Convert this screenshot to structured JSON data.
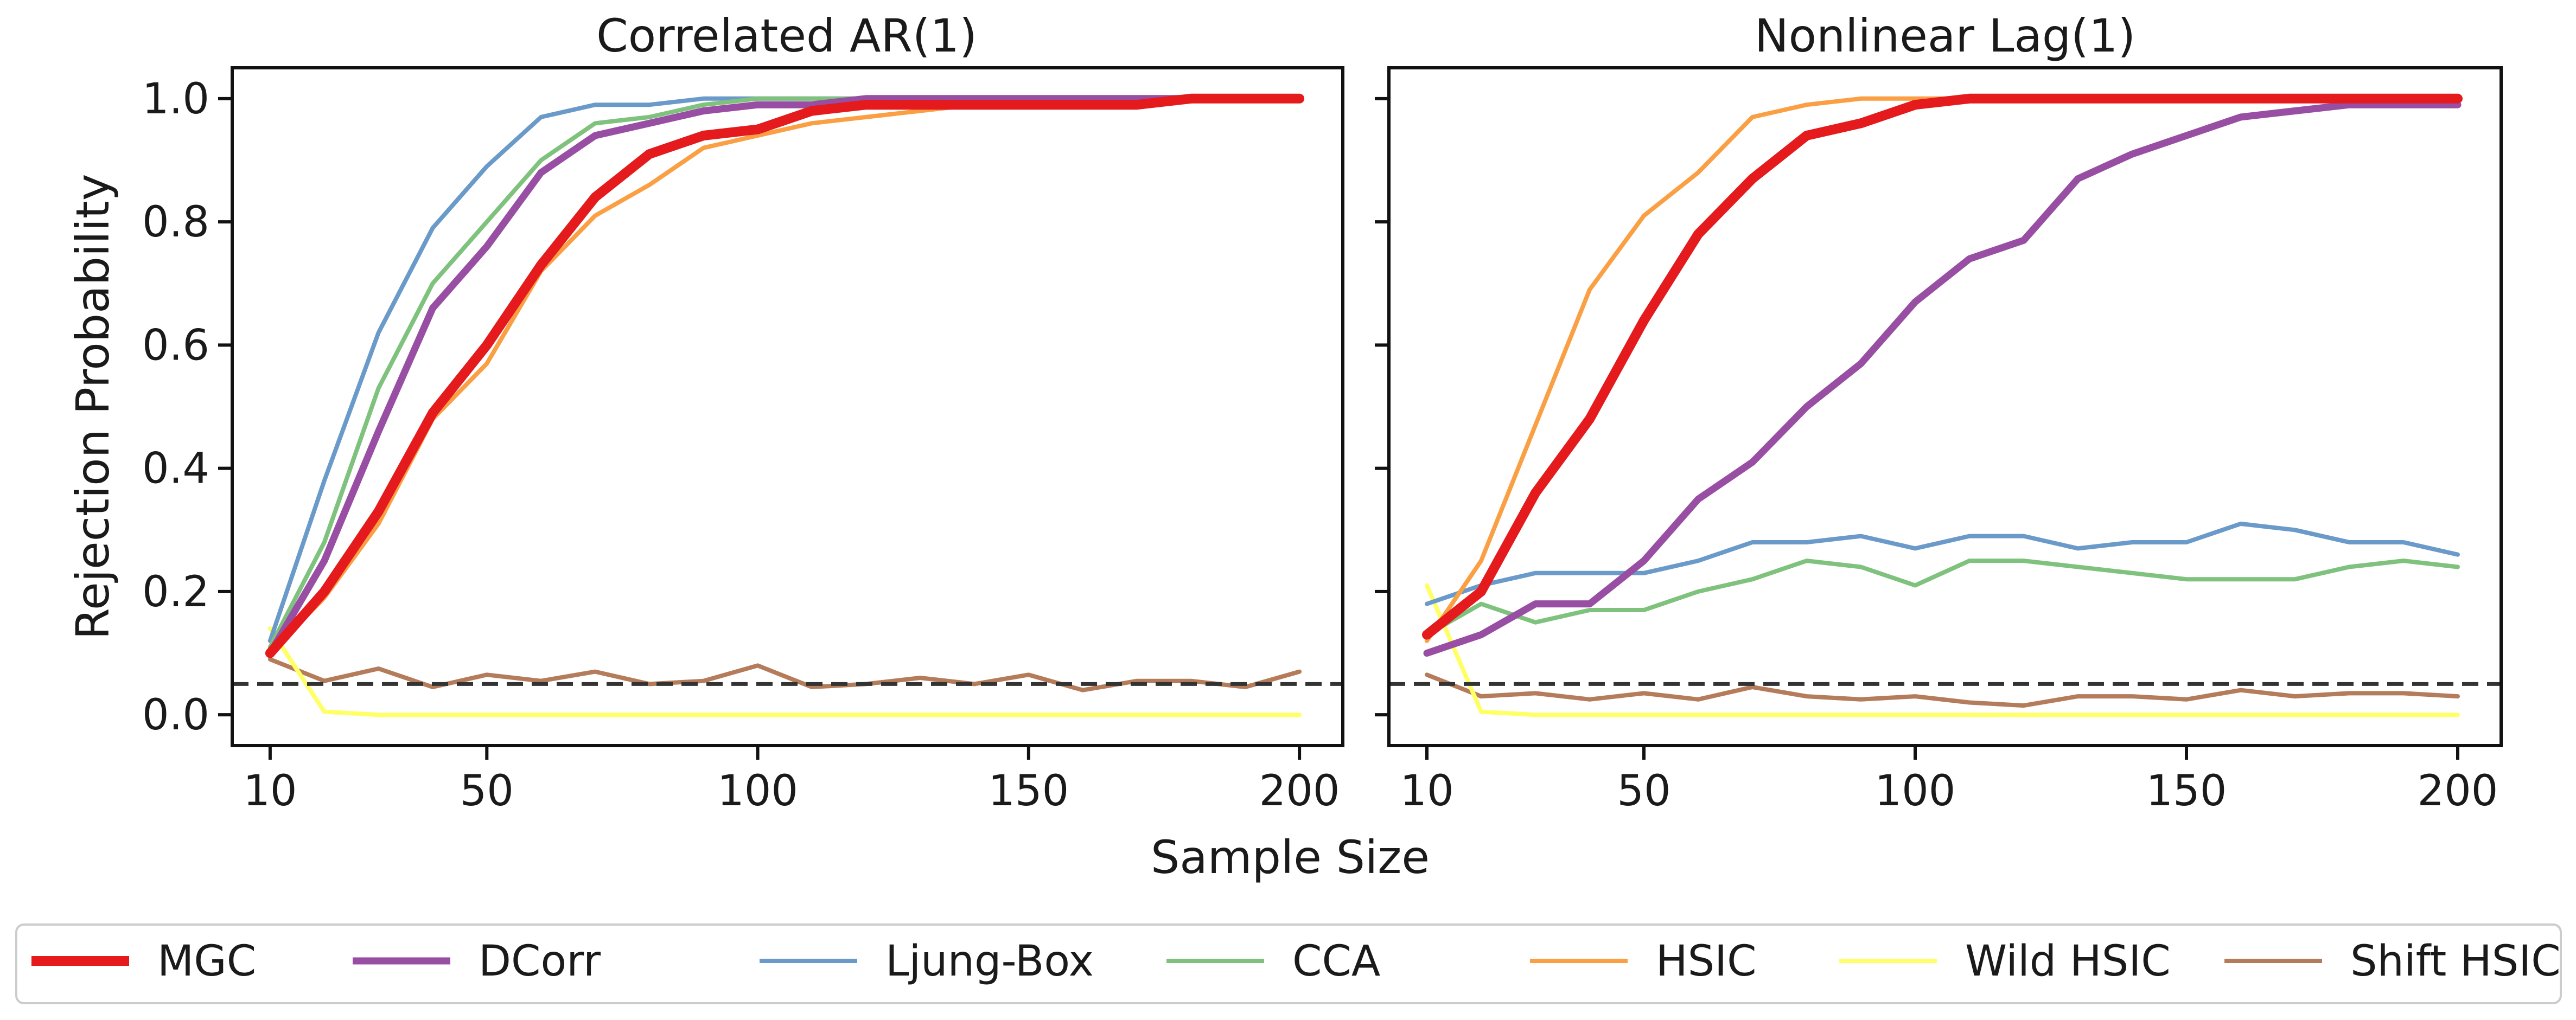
{
  "figure": {
    "xlabel": "Sample Size",
    "ylabel": "Rejection Probability"
  },
  "legend": {
    "placement": "bottom",
    "entries": [
      "MGC",
      "DCorr",
      "Ljung-Box",
      "CCA",
      "HSIC",
      "Wild HSIC",
      "Shift HSIC"
    ]
  },
  "colors": {
    "MGC": "#e41a1c",
    "DCorr": "#984ea3",
    "Ljung-Box": "#6a9ac9",
    "CCA": "#7fc27d",
    "HSIC": "#fa9f44",
    "Wild HSIC": "#ffff66",
    "Shift HSIC": "#b47c5a",
    "reference": "#333333"
  },
  "chart_data": [
    {
      "type": "line",
      "title": "Correlated AR(1)",
      "xlabel": "",
      "ylabel": "Rejection Probability",
      "xlim": [
        3,
        208
      ],
      "ylim": [
        -0.05,
        1.05
      ],
      "xticks": [
        10,
        50,
        100,
        150,
        200
      ],
      "yticks": [
        0.0,
        0.2,
        0.4,
        0.6,
        0.8,
        1.0
      ],
      "ytick_labels": [
        "0.0",
        "0.2",
        "0.4",
        "0.6",
        "0.8",
        "1.0"
      ],
      "reference_line": 0.05,
      "x": [
        10,
        20,
        30,
        40,
        50,
        60,
        70,
        80,
        90,
        100,
        110,
        120,
        130,
        140,
        150,
        160,
        170,
        180,
        190,
        200
      ],
      "series": [
        {
          "name": "MGC",
          "values": [
            0.1,
            0.2,
            0.33,
            0.49,
            0.6,
            0.73,
            0.84,
            0.91,
            0.94,
            0.95,
            0.98,
            0.99,
            0.99,
            0.99,
            0.99,
            0.99,
            0.99,
            1.0,
            1.0,
            1.0
          ]
        },
        {
          "name": "DCorr",
          "values": [
            0.1,
            0.25,
            0.46,
            0.66,
            0.76,
            0.88,
            0.94,
            0.96,
            0.98,
            0.99,
            0.99,
            1.0,
            1.0,
            1.0,
            1.0,
            1.0,
            1.0,
            1.0,
            1.0,
            1.0
          ]
        },
        {
          "name": "Ljung-Box",
          "values": [
            0.12,
            0.38,
            0.62,
            0.79,
            0.89,
            0.97,
            0.99,
            0.99,
            1.0,
            1.0,
            1.0,
            1.0,
            1.0,
            1.0,
            1.0,
            1.0,
            1.0,
            1.0,
            1.0,
            1.0
          ]
        },
        {
          "name": "CCA",
          "values": [
            0.11,
            0.28,
            0.53,
            0.7,
            0.8,
            0.9,
            0.96,
            0.97,
            0.99,
            1.0,
            1.0,
            1.0,
            1.0,
            1.0,
            1.0,
            1.0,
            1.0,
            1.0,
            1.0,
            1.0
          ]
        },
        {
          "name": "HSIC",
          "values": [
            0.1,
            0.19,
            0.31,
            0.48,
            0.57,
            0.72,
            0.81,
            0.86,
            0.92,
            0.94,
            0.96,
            0.97,
            0.98,
            0.99,
            1.0,
            1.0,
            1.0,
            1.0,
            1.0,
            1.0
          ]
        },
        {
          "name": "Wild HSIC",
          "values": [
            0.14,
            0.005,
            0.0,
            0.0,
            0.0,
            0.0,
            0.0,
            0.0,
            0.0,
            0.0,
            0.0,
            0.0,
            0.0,
            0.0,
            0.0,
            0.0,
            0.0,
            0.0,
            0.0,
            0.0
          ]
        },
        {
          "name": "Shift HSIC",
          "values": [
            0.09,
            0.055,
            0.075,
            0.045,
            0.065,
            0.055,
            0.07,
            0.05,
            0.055,
            0.08,
            0.045,
            0.05,
            0.06,
            0.05,
            0.065,
            0.04,
            0.055,
            0.055,
            0.045,
            0.07
          ]
        }
      ]
    },
    {
      "type": "line",
      "title": "Nonlinear Lag(1)",
      "xlabel": "",
      "ylabel": "",
      "xlim": [
        3,
        208
      ],
      "ylim": [
        -0.05,
        1.05
      ],
      "xticks": [
        10,
        50,
        100,
        150,
        200
      ],
      "yticks": [
        0.0,
        0.2,
        0.4,
        0.6,
        0.8,
        1.0
      ],
      "ytick_labels": [],
      "reference_line": 0.05,
      "x": [
        10,
        20,
        30,
        40,
        50,
        60,
        70,
        80,
        90,
        100,
        110,
        120,
        130,
        140,
        150,
        160,
        170,
        180,
        190,
        200
      ],
      "series": [
        {
          "name": "MGC",
          "values": [
            0.13,
            0.2,
            0.36,
            0.48,
            0.64,
            0.78,
            0.87,
            0.94,
            0.96,
            0.99,
            1.0,
            1.0,
            1.0,
            1.0,
            1.0,
            1.0,
            1.0,
            1.0,
            1.0,
            1.0
          ]
        },
        {
          "name": "DCorr",
          "values": [
            0.1,
            0.13,
            0.18,
            0.18,
            0.25,
            0.35,
            0.41,
            0.5,
            0.57,
            0.67,
            0.74,
            0.77,
            0.87,
            0.91,
            0.94,
            0.97,
            0.98,
            0.99,
            0.99,
            0.99
          ]
        },
        {
          "name": "Ljung-Box",
          "values": [
            0.18,
            0.21,
            0.23,
            0.23,
            0.23,
            0.25,
            0.28,
            0.28,
            0.29,
            0.27,
            0.29,
            0.29,
            0.27,
            0.28,
            0.28,
            0.31,
            0.3,
            0.28,
            0.28,
            0.26
          ]
        },
        {
          "name": "CCA",
          "values": [
            0.13,
            0.18,
            0.15,
            0.17,
            0.17,
            0.2,
            0.22,
            0.25,
            0.24,
            0.21,
            0.25,
            0.25,
            0.24,
            0.23,
            0.22,
            0.22,
            0.22,
            0.24,
            0.25,
            0.24
          ]
        },
        {
          "name": "HSIC",
          "values": [
            0.12,
            0.25,
            0.47,
            0.69,
            0.81,
            0.88,
            0.97,
            0.99,
            1.0,
            1.0,
            1.0,
            1.0,
            1.0,
            1.0,
            1.0,
            1.0,
            1.0,
            1.0,
            1.0,
            1.0
          ]
        },
        {
          "name": "Wild HSIC",
          "values": [
            0.21,
            0.005,
            0.0,
            0.0,
            0.0,
            0.0,
            0.0,
            0.0,
            0.0,
            0.0,
            0.0,
            0.0,
            0.0,
            0.0,
            0.0,
            0.0,
            0.0,
            0.0,
            0.0,
            0.0
          ]
        },
        {
          "name": "Shift HSIC",
          "values": [
            0.065,
            0.03,
            0.035,
            0.025,
            0.035,
            0.025,
            0.045,
            0.03,
            0.025,
            0.03,
            0.02,
            0.015,
            0.03,
            0.03,
            0.025,
            0.04,
            0.03,
            0.035,
            0.035,
            0.03
          ]
        }
      ]
    }
  ]
}
